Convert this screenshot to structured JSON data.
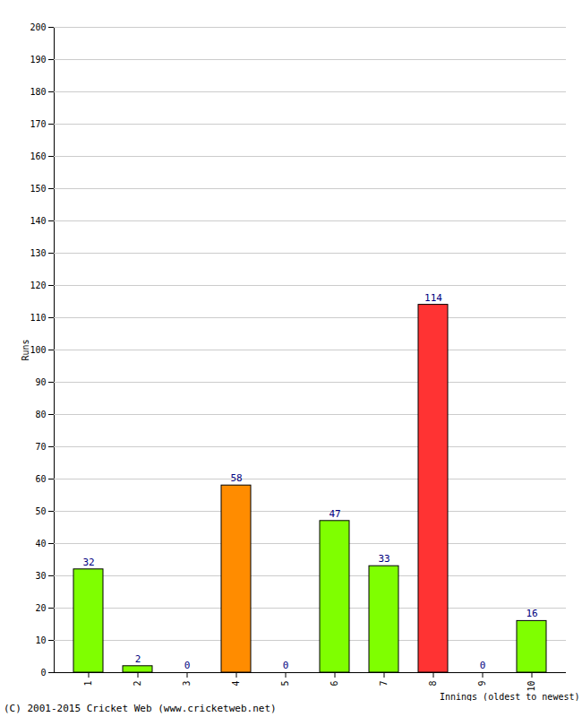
{
  "chart_data": {
    "type": "bar",
    "categories": [
      "1",
      "2",
      "3",
      "4",
      "5",
      "6",
      "7",
      "8",
      "9",
      "10"
    ],
    "values": [
      32,
      2,
      0,
      58,
      0,
      47,
      33,
      114,
      0,
      16
    ],
    "colors": [
      "#7fff00",
      "#7fff00",
      "#7fff00",
      "#ff8c00",
      "#7fff00",
      "#7fff00",
      "#7fff00",
      "#ff3333",
      "#7fff00",
      "#7fff00"
    ],
    "x_label": "Innings (oldest to newest)",
    "y_label": "Runs",
    "caption": "(C) 2001-2015 Cricket Web (www.cricketweb.net)",
    "ylim": [
      0,
      200
    ],
    "yticks": [
      0,
      10,
      20,
      30,
      40,
      50,
      60,
      70,
      80,
      90,
      100,
      110,
      120,
      130,
      140,
      150,
      160,
      170,
      180,
      190,
      200
    ],
    "grid": true,
    "data_labels": true
  }
}
